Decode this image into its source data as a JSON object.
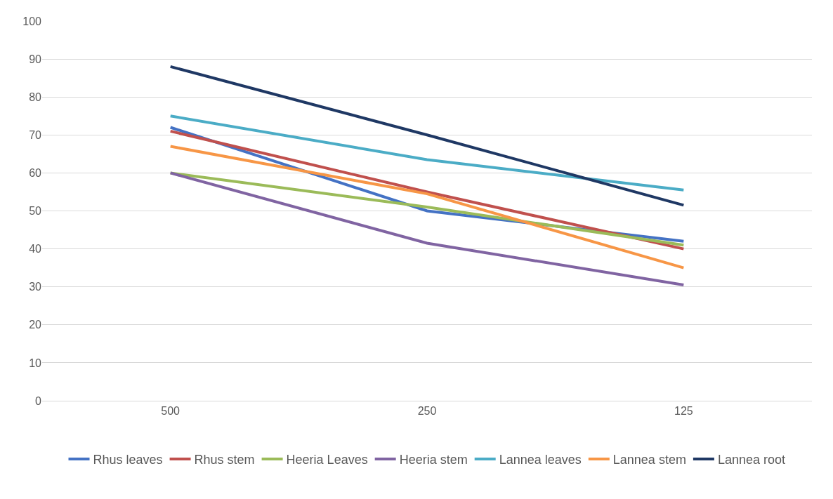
{
  "chart_data": {
    "type": "line",
    "categories": [
      "500",
      "250",
      "125"
    ],
    "series": [
      {
        "name": "Rhus leaves",
        "color": "#4472c4",
        "values": [
          72,
          50,
          42
        ]
      },
      {
        "name": "Rhus stem",
        "color": "#c0504d",
        "values": [
          71,
          55,
          40
        ]
      },
      {
        "name": "Heeria Leaves",
        "color": "#9bbb59",
        "values": [
          60,
          51,
          41
        ]
      },
      {
        "name": "Heeria stem",
        "color": "#8064a2",
        "values": [
          60,
          41.5,
          30.5
        ]
      },
      {
        "name": "Lannea leaves",
        "color": "#4bacc6",
        "values": [
          75,
          63.5,
          55.5
        ]
      },
      {
        "name": "Lannea stem",
        "color": "#f79646",
        "values": [
          67,
          54.5,
          35
        ]
      },
      {
        "name": "Lannea root",
        "color": "#1f3864",
        "values": [
          88,
          70,
          51.5
        ]
      }
    ],
    "ylim": [
      0,
      100
    ],
    "yticks": [
      0,
      10,
      20,
      30,
      40,
      50,
      60,
      70,
      80,
      90,
      100
    ],
    "grid": "y",
    "legend": "bottom",
    "marker": "none",
    "line_style": "solid"
  }
}
